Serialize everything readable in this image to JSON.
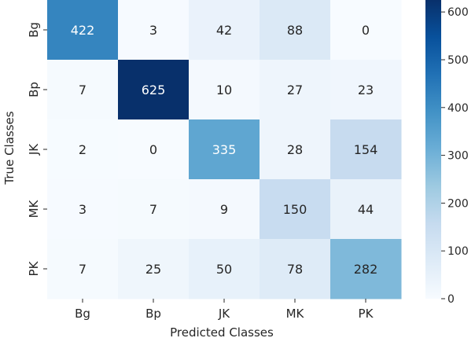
{
  "chart_data": {
    "type": "heatmap",
    "title": "",
    "xlabel": "Predicted Classes",
    "ylabel": "True Classes",
    "x_categories": [
      "Bg",
      "Bp",
      "JK",
      "MK",
      "PK"
    ],
    "y_categories": [
      "Bg",
      "Bp",
      "JK",
      "MK",
      "PK"
    ],
    "values": [
      [
        422,
        3,
        42,
        88,
        0
      ],
      [
        7,
        625,
        10,
        27,
        23
      ],
      [
        2,
        0,
        335,
        28,
        154
      ],
      [
        3,
        7,
        9,
        150,
        44
      ],
      [
        7,
        25,
        50,
        78,
        282
      ]
    ],
    "colormap": "Blues",
    "color_range": [
      0,
      625
    ],
    "colorbar_ticks": [
      0,
      100,
      200,
      300,
      400,
      500,
      600
    ],
    "annotations": true
  }
}
